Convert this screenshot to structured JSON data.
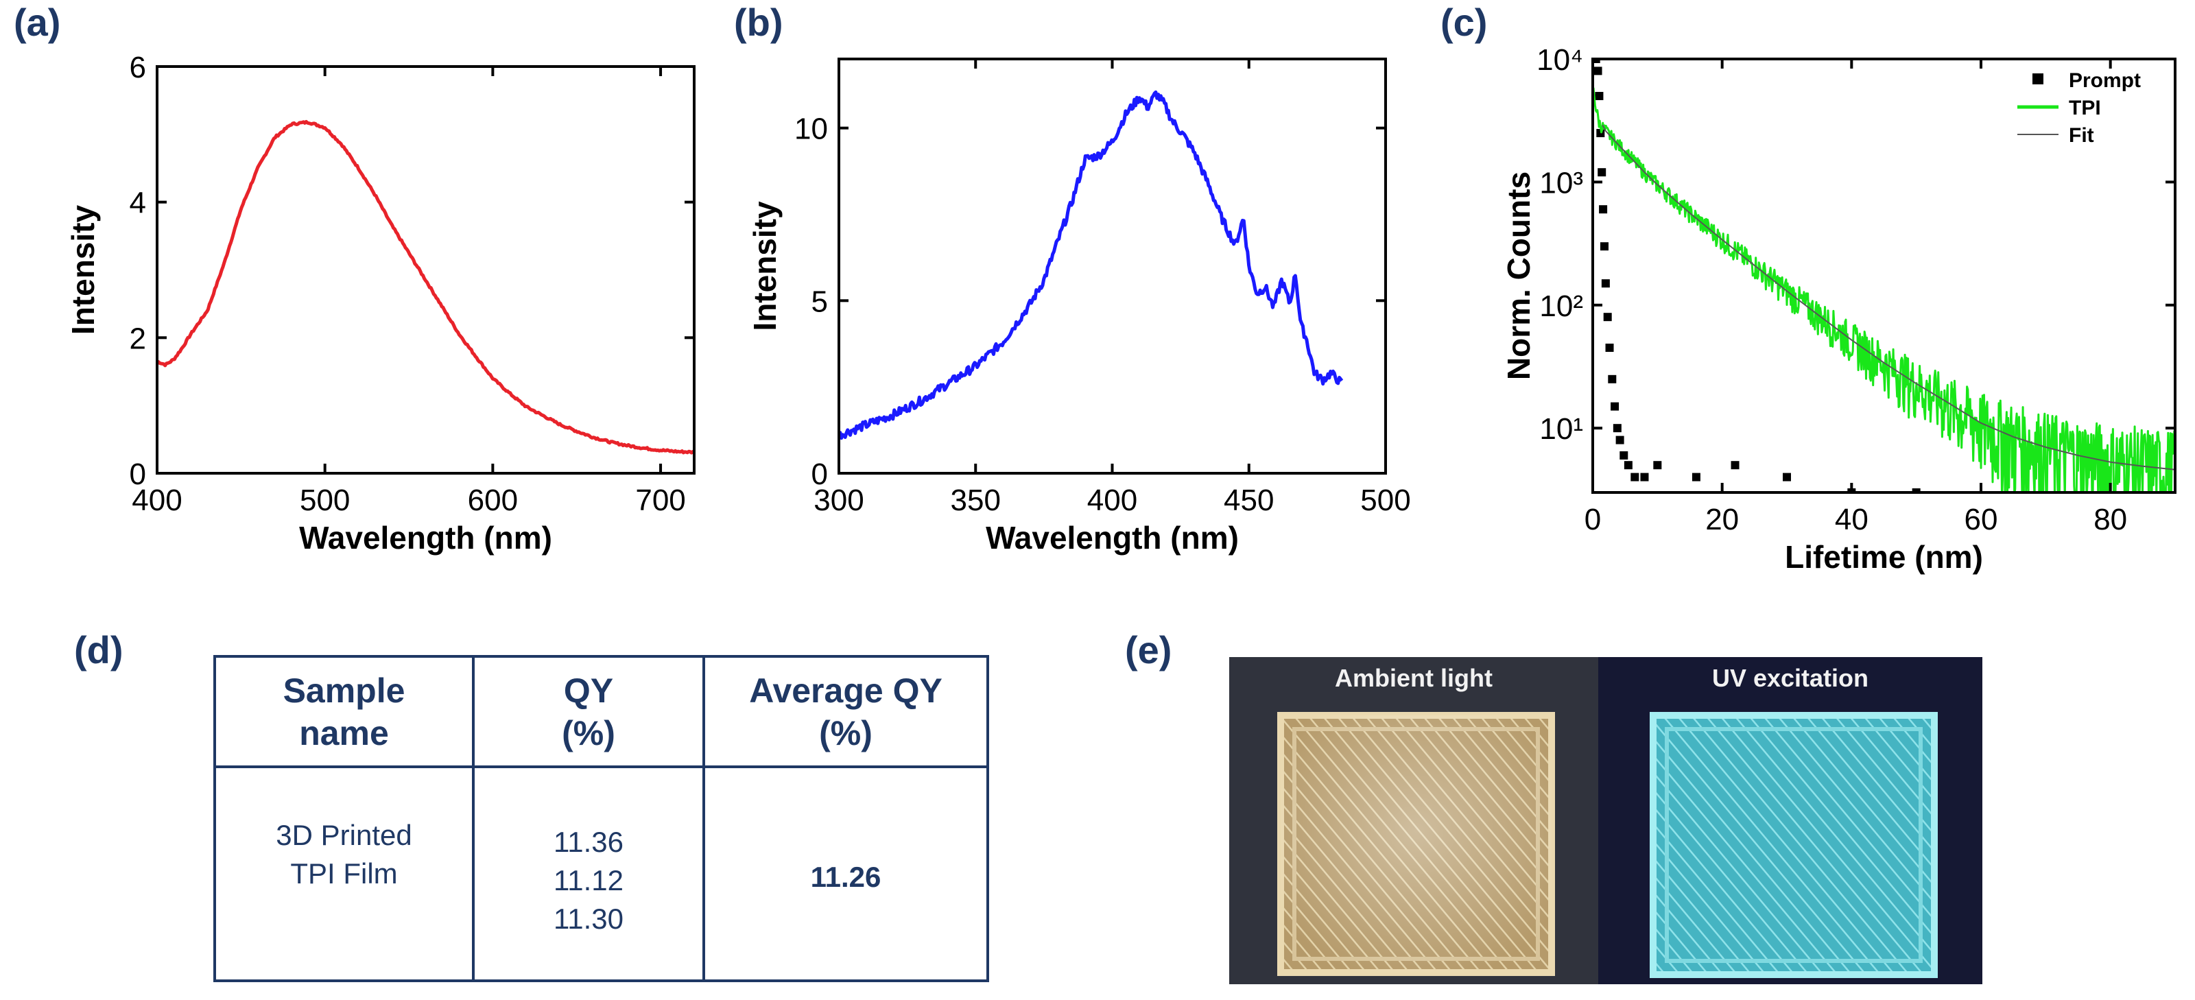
{
  "panel_labels": {
    "a": "(a)",
    "b": "(b)",
    "c": "(c)",
    "d": "(d)",
    "e": "(e)"
  },
  "chart_data": [
    {
      "id": "a",
      "type": "line",
      "xlabel": "Wavelength (nm)",
      "ylabel": "Intensity",
      "xlim": [
        400,
        720
      ],
      "ylim": [
        0,
        6
      ],
      "xticks": [
        400,
        500,
        600,
        700
      ],
      "yticks": [
        0,
        2,
        4,
        6
      ],
      "series": [
        {
          "color": "#e8232a",
          "x": [
            400,
            405,
            410,
            415,
            420,
            430,
            440,
            450,
            460,
            470,
            480,
            490,
            500,
            510,
            520,
            530,
            540,
            550,
            560,
            570,
            580,
            590,
            600,
            610,
            620,
            630,
            640,
            650,
            660,
            670,
            680,
            690,
            700,
            710,
            720
          ],
          "y": [
            1.65,
            1.6,
            1.68,
            1.85,
            2.05,
            2.4,
            3.1,
            3.9,
            4.5,
            4.95,
            5.15,
            5.18,
            5.1,
            4.85,
            4.5,
            4.1,
            3.65,
            3.25,
            2.85,
            2.45,
            2.05,
            1.72,
            1.4,
            1.18,
            0.98,
            0.85,
            0.72,
            0.62,
            0.53,
            0.46,
            0.41,
            0.37,
            0.34,
            0.32,
            0.31
          ]
        }
      ]
    },
    {
      "id": "b",
      "type": "line",
      "xlabel": "Wavelength (nm)",
      "ylabel": "Intensity",
      "xlim": [
        300,
        500
      ],
      "ylim": [
        0,
        12
      ],
      "xticks": [
        300,
        350,
        400,
        450,
        500
      ],
      "yticks": [
        0,
        5,
        10
      ],
      "series": [
        {
          "color": "#1a1aff",
          "x": [
            300,
            310,
            320,
            330,
            340,
            350,
            360,
            370,
            375,
            380,
            385,
            390,
            395,
            400,
            405,
            410,
            413,
            416,
            419,
            422,
            426,
            430,
            435,
            440,
            445,
            448,
            450,
            453,
            456,
            459,
            462,
            465,
            467,
            469,
            471,
            474,
            477,
            480,
            484
          ],
          "y": [
            1.1,
            1.4,
            1.7,
            2.1,
            2.6,
            3.1,
            3.8,
            4.9,
            5.6,
            6.7,
            7.8,
            9.1,
            9.2,
            9.6,
            10.4,
            10.9,
            10.6,
            11.0,
            10.7,
            10.2,
            9.8,
            9.3,
            8.4,
            7.4,
            6.6,
            7.4,
            6.0,
            5.2,
            5.4,
            4.8,
            5.6,
            4.9,
            5.8,
            4.3,
            3.9,
            2.9,
            2.7,
            2.9,
            2.6
          ]
        }
      ]
    },
    {
      "id": "c",
      "type": "line",
      "yscale": "log",
      "xlabel": "Lifetime (nm)",
      "ylabel": "Norm. Counts",
      "xlim": [
        0,
        90
      ],
      "ylim": [
        3,
        10000
      ],
      "xticks": [
        0,
        20,
        40,
        60,
        80
      ],
      "ytick_labels": [
        "10¹",
        "10²",
        "10³",
        "10⁴"
      ],
      "ytick_values": [
        10,
        100,
        1000,
        10000
      ],
      "legend_position": "top-right",
      "series": [
        {
          "name": "Prompt",
          "style": "square markers",
          "color": "#000000",
          "x": [
            0.5,
            0.8,
            1.0,
            1.2,
            1.4,
            1.6,
            1.8,
            2.0,
            2.3,
            2.6,
            3.0,
            3.4,
            3.8,
            4.2,
            4.8,
            5.5,
            6.5,
            8.0,
            10.0,
            16.0,
            22.0,
            30.0,
            40.0,
            50.0
          ],
          "y": [
            10000,
            8000,
            5000,
            2500,
            1200,
            600,
            300,
            150,
            80,
            45,
            25,
            15,
            10,
            8,
            6,
            5,
            4,
            4,
            5,
            4,
            5,
            4,
            3,
            3
          ]
        },
        {
          "name": "TPI",
          "style": "noisy line",
          "color": "#19e619",
          "x": [
            0,
            0.5,
            1,
            1.5,
            2,
            4,
            6,
            8,
            10,
            15,
            20,
            25,
            30,
            35,
            40,
            45,
            50,
            55,
            60,
            65,
            70,
            75,
            80,
            85,
            90
          ],
          "y": [
            6000,
            4000,
            3000,
            2800,
            2600,
            2000,
            1550,
            1200,
            950,
            560,
            340,
            210,
            130,
            82,
            52,
            34,
            23,
            16,
            11,
            8.5,
            7,
            6,
            5.3,
            4.9,
            4.6
          ]
        },
        {
          "name": "Fit",
          "style": "thin line",
          "color": "#555555",
          "x": [
            1.5,
            2,
            4,
            6,
            8,
            10,
            15,
            20,
            25,
            30,
            35,
            40,
            45,
            50,
            55,
            60,
            65,
            70,
            75,
            80,
            85,
            90
          ],
          "y": [
            2900,
            2600,
            2000,
            1550,
            1200,
            950,
            560,
            340,
            210,
            130,
            82,
            52,
            34,
            23,
            16,
            11,
            8.5,
            7,
            6,
            5.3,
            4.9,
            4.6
          ]
        }
      ]
    },
    {
      "id": "d",
      "type": "table",
      "headers": [
        [
          "Sample",
          "name"
        ],
        [
          "QY",
          "(%)"
        ],
        [
          "Average QY",
          "(%)"
        ]
      ],
      "rows": [
        {
          "sample": [
            "3D Printed",
            "TPI Film"
          ],
          "qy": [
            "11.36",
            "11.12",
            "11.30"
          ],
          "average": "11.26"
        }
      ]
    }
  ],
  "photos": {
    "left_caption": "Ambient light",
    "right_caption": "UV excitation",
    "left_print_color": "#b59a6a",
    "right_print_color": "#55c3cf"
  }
}
